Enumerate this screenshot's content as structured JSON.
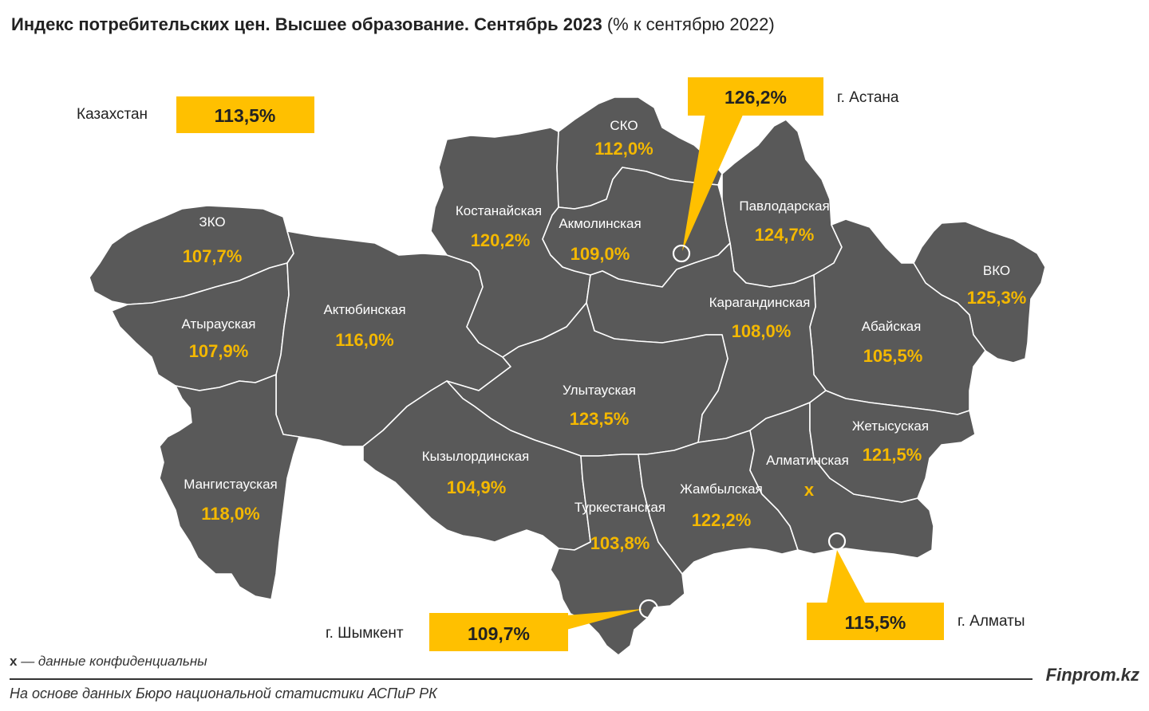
{
  "title": {
    "main": "Индекс потребительских цен. Высшее образование. Сентябрь 2023",
    "sub": "(% к сентябрю 2022)"
  },
  "colors": {
    "region_fill": "#595959",
    "value_text": "#f4b800",
    "callout": "#ffc000"
  },
  "country": {
    "label": "Казахстан",
    "value": "113,5%"
  },
  "regions": {
    "sko": {
      "name": "СКО",
      "value": "112,0%"
    },
    "kostanay": {
      "name": "Костанайская",
      "value": "120,2%"
    },
    "akmola": {
      "name": "Акмолинская",
      "value": "109,0%"
    },
    "pavlodar": {
      "name": "Павлодарская",
      "value": "124,7%"
    },
    "zko": {
      "name": "ЗКО",
      "value": "107,7%"
    },
    "vko": {
      "name": "ВКО",
      "value": "125,3%"
    },
    "karaganda": {
      "name": "Карагандинская",
      "value": "108,0%"
    },
    "aktobe": {
      "name": "Актюбинская",
      "value": "116,0%"
    },
    "atyrau": {
      "name": "Атырауская",
      "value": "107,9%"
    },
    "abay": {
      "name": "Абайская",
      "value": "105,5%"
    },
    "ulytau": {
      "name": "Улытауская",
      "value": "123,5%"
    },
    "zhetysu": {
      "name": "Жетысуская",
      "value": "121,5%"
    },
    "kyzylorda": {
      "name": "Кызылординская",
      "value": "104,9%"
    },
    "almaty_region": {
      "name": "Алматинская",
      "value": "x"
    },
    "mangystau": {
      "name": "Мангистауская",
      "value": "118,0%"
    },
    "zhambyl": {
      "name": "Жамбылская",
      "value": "122,2%"
    },
    "turkestan": {
      "name": "Туркестанская",
      "value": "103,8%"
    }
  },
  "cities": {
    "astana": {
      "label": "г. Астана",
      "value": "126,2%"
    },
    "shymkent": {
      "label": "г. Шымкент",
      "value": "109,7%"
    },
    "almaty": {
      "label": "г. Алматы",
      "value": "115,5%"
    }
  },
  "footer": {
    "note_symbol": "x",
    "note_text": " — данные конфиденциальны",
    "source": "На основе данных Бюро национальной статистики АСПиР РК",
    "brand": "Finprom.kz"
  }
}
